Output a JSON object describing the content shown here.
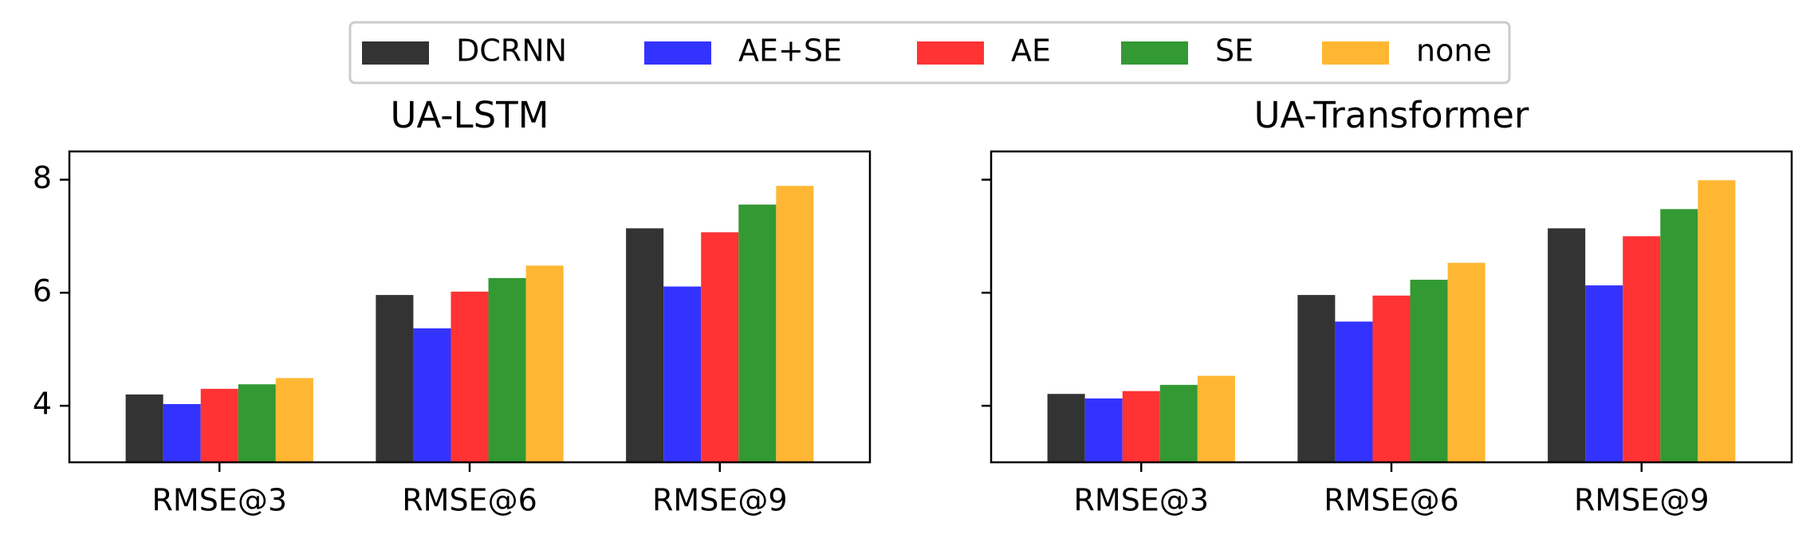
{
  "legend": {
    "items": [
      {
        "label": "DCRNN",
        "color": "#333333"
      },
      {
        "label": "AE+SE",
        "color": "#3333ff"
      },
      {
        "label": "AE",
        "color": "#ff3333"
      },
      {
        "label": "SE",
        "color": "#339933"
      },
      {
        "label": "none",
        "color": "#ffb733"
      }
    ]
  },
  "chart_data": [
    {
      "type": "bar",
      "title": "UA-LSTM",
      "xlabel": "",
      "ylabel": "",
      "categories": [
        "RMSE@3",
        "RMSE@6",
        "RMSE@9"
      ],
      "ylim": [
        3.0,
        8.5
      ],
      "yticks": [
        4,
        6,
        8
      ],
      "grid": false,
      "legend_placement": "top-center",
      "series": [
        {
          "name": "DCRNN",
          "values": [
            4.2,
            5.96,
            7.14
          ]
        },
        {
          "name": "AE+SE",
          "values": [
            4.03,
            5.37,
            6.11
          ]
        },
        {
          "name": "AE",
          "values": [
            4.3,
            6.02,
            7.07
          ]
        },
        {
          "name": "SE",
          "values": [
            4.38,
            6.26,
            7.56
          ]
        },
        {
          "name": "none",
          "values": [
            4.49,
            6.48,
            7.89
          ]
        }
      ]
    },
    {
      "type": "bar",
      "title": "UA-Transformer",
      "xlabel": "",
      "ylabel": "",
      "categories": [
        "RMSE@3",
        "RMSE@6",
        "RMSE@9"
      ],
      "ylim": [
        3.0,
        8.5
      ],
      "yticks": [
        4,
        6,
        8
      ],
      "grid": false,
      "legend_placement": "top-center",
      "series": [
        {
          "name": "DCRNN",
          "values": [
            4.21,
            5.96,
            7.14
          ]
        },
        {
          "name": "AE+SE",
          "values": [
            4.13,
            5.49,
            6.13
          ]
        },
        {
          "name": "AE",
          "values": [
            4.26,
            5.95,
            7.0
          ]
        },
        {
          "name": "SE",
          "values": [
            4.37,
            6.23,
            7.48
          ]
        },
        {
          "name": "none",
          "values": [
            4.53,
            6.53,
            7.99
          ]
        }
      ]
    }
  ]
}
